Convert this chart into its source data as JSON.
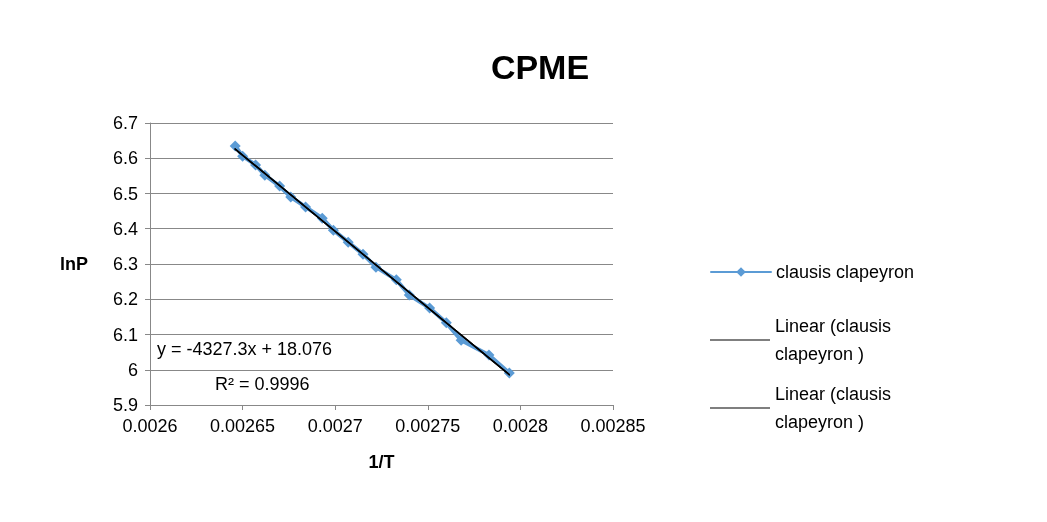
{
  "chart_data": {
    "type": "line",
    "title": "CPME",
    "xlabel": "1/T",
    "ylabel": "lnP",
    "series": [
      {
        "name": "clausis clapeyron",
        "color": "#5b9bd5",
        "marker": "diamond",
        "x": [
          0.002646,
          0.00265,
          0.002657,
          0.002662,
          0.00267,
          0.002676,
          0.002684,
          0.002693,
          0.002699,
          0.002707,
          0.002715,
          0.002722,
          0.002733,
          0.00274,
          0.002751,
          0.00276,
          0.002768,
          0.002783,
          0.002794
        ],
        "values": [
          6.635,
          6.606,
          6.581,
          6.552,
          6.521,
          6.49,
          6.462,
          6.43,
          6.396,
          6.362,
          6.328,
          6.291,
          6.255,
          6.212,
          6.175,
          6.133,
          6.084,
          6.042,
          5.991
        ]
      },
      {
        "name": "Linear (clausis clapeyron )",
        "color": "#000000",
        "marker": "none",
        "x": [
          0.002646,
          0.002794
        ],
        "values": [
          6.626,
          5.986
        ]
      },
      {
        "name": "Linear (clausis clapeyron )",
        "color": "#000000",
        "marker": "none",
        "x": [
          0.002646,
          0.002794
        ],
        "values": [
          6.626,
          5.986
        ]
      }
    ],
    "xlim": [
      0.0026,
      0.00285
    ],
    "xticks": [
      0.0026,
      0.00265,
      0.0027,
      0.00275,
      0.0028,
      0.00285
    ],
    "ylim": [
      5.9,
      6.7
    ],
    "yticks": [
      5.9,
      6,
      6.1,
      6.2,
      6.3,
      6.4,
      6.5,
      6.6,
      6.7
    ],
    "grid": "y",
    "legend": "right",
    "line_style": "solid",
    "annotations": [
      "y = -4327.3x + 18.076",
      "R² = 0.9996"
    ]
  }
}
